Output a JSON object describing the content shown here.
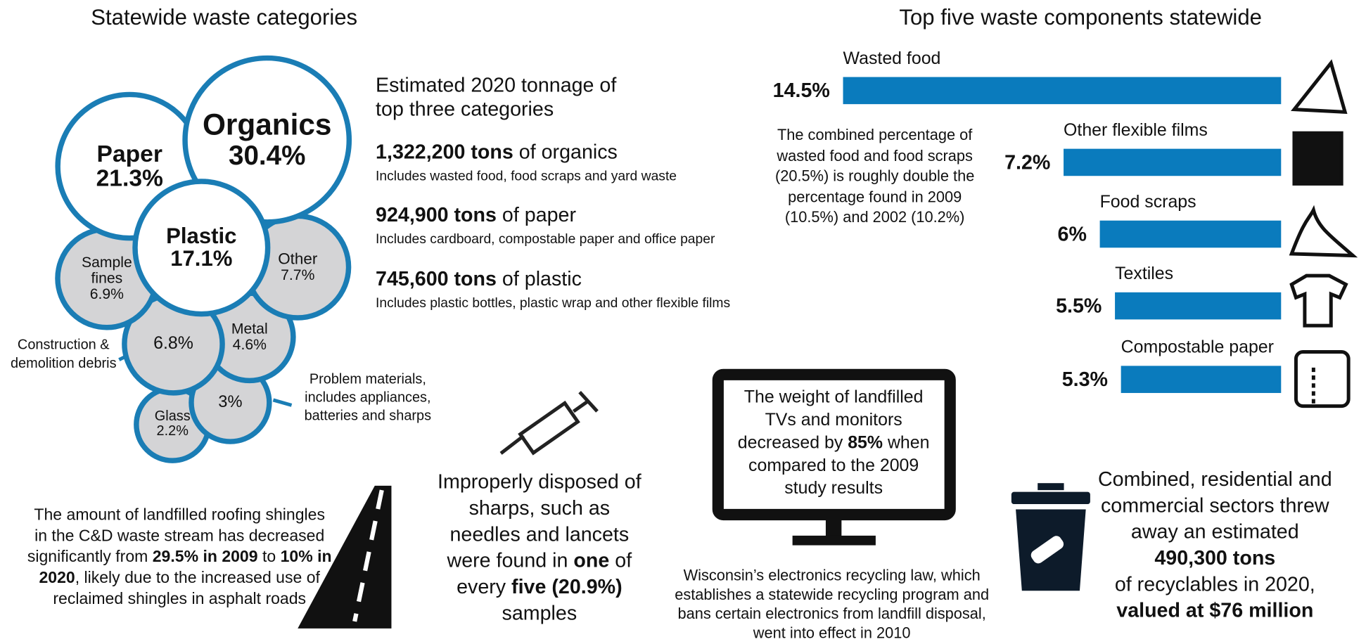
{
  "chart_data": [
    {
      "type": "bubble",
      "title": "Statewide waste categories",
      "categories": [
        "Organics",
        "Paper",
        "Plastic",
        "Other",
        "Sample fines",
        "Metal",
        "Construction & demolition debris",
        "Problem materials, includes appliances, batteries and sharps",
        "Glass"
      ],
      "values": [
        30.4,
        21.3,
        17.1,
        7.7,
        6.9,
        4.6,
        6.8,
        3,
        2.2
      ],
      "value_labels": [
        "30.4%",
        "21.3%",
        "17.1%",
        "7.7%",
        "6.9%",
        "4.6%",
        "6.8%",
        "3%",
        "2.2%"
      ],
      "fills": [
        "#ffffff",
        "#ffffff",
        "#ffffff",
        "#d4d4d6",
        "#d4d4d6",
        "#d4d4d6",
        "#d4d4d6",
        "#d4d4d6",
        "#d4d4d6"
      ],
      "stroke": "#1a7db5"
    },
    {
      "type": "bar",
      "title": "Top five waste components statewide",
      "categories": [
        "Wasted food",
        "Other flexible films",
        "Food scraps",
        "Textiles",
        "Compostable paper"
      ],
      "values": [
        14.5,
        7.2,
        6,
        5.5,
        5.3
      ],
      "value_labels": [
        "14.5%",
        "7.2%",
        "6%",
        "5.5%",
        "5.3%"
      ],
      "color": "#0a7bbd",
      "annotation": "The combined percentage of wasted food and food scraps (20.5%) is roughly double the percentage found in 2009 (10.5%) and 2002 (10.2%)"
    }
  ],
  "tonnage": {
    "heading": "Estimated 2020 tonnage of top three categories",
    "items": [
      {
        "amount": "1,322,200 tons",
        "text": " of organics",
        "detail": "Includes wasted food, food scraps and yard waste"
      },
      {
        "amount": "924,900 tons",
        "text": " of paper",
        "detail": "Includes cardboard, compostable paper and office paper"
      },
      {
        "amount": "745,600 tons",
        "text": " of plastic",
        "detail": "Includes plastic bottles, plastic wrap and other flexible films"
      }
    ]
  },
  "sharps_note": [
    "Improperly disposed of sharps, such as needles and lancets were found in ",
    "one",
    " of every ",
    "five (20.9%)",
    " samples"
  ],
  "roofing_note": [
    "The amount of landfilled roofing shingles in the C&D waste stream has decreased significantly from ",
    "29.5% in 2009",
    " to ",
    "10% in 2020",
    ", likely due to the increased use of reclaimed shingles in asphalt roads"
  ],
  "tv_note": [
    "The weight of landfilled TVs and monitors decreased by ",
    "85%",
    " when compared to the 2009 study results"
  ],
  "electronics_law": "Wisconsin’s electronics recycling law, which establishes a statewide recycling program and bans certain electronics from landfill disposal, went into effect in 2010",
  "recyclables_note": [
    "Combined, residential and commercial sectors threw away an estimated ",
    "490,300 tons",
    " of recyclables in 2020, ",
    "valued at $76 million"
  ]
}
